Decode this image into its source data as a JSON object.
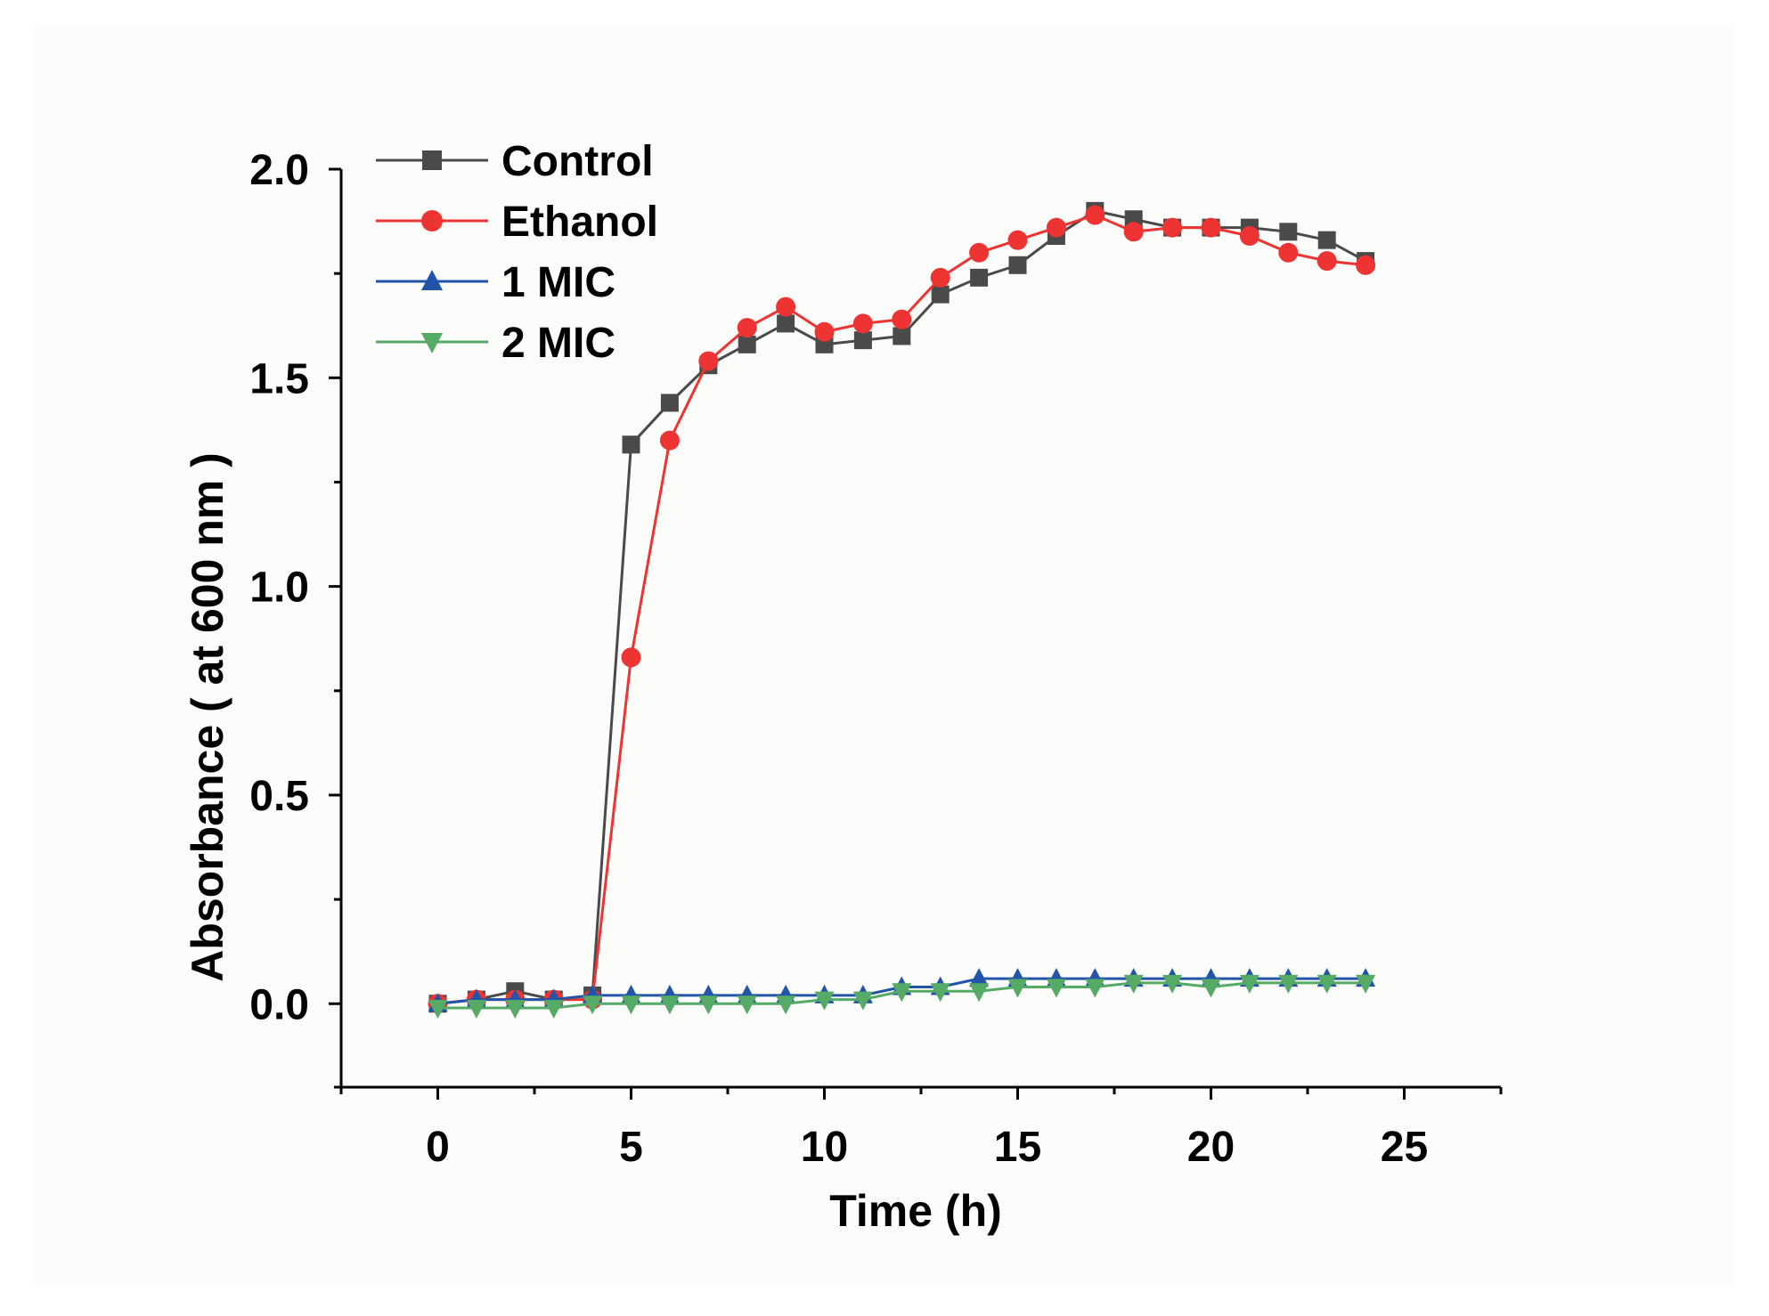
{
  "chart_data": {
    "type": "line",
    "xlabel": "Time (h)",
    "ylabel": "Absorbance ( at 600 nm )",
    "xlim": [
      -2.5,
      27.5
    ],
    "ylim": [
      -0.2,
      2.0
    ],
    "xticks": [
      0,
      5,
      10,
      15,
      20,
      25
    ],
    "yticks": [
      0.0,
      0.5,
      1.0,
      1.5,
      2.0
    ],
    "xtick_labels": [
      "0",
      "5",
      "10",
      "15",
      "20",
      "25"
    ],
    "ytick_labels": [
      "0.0",
      "0.5",
      "1.0",
      "1.5",
      "2.0"
    ],
    "legend_position": "top-left",
    "x": [
      0,
      1,
      2,
      3,
      4,
      5,
      6,
      7,
      8,
      9,
      10,
      11,
      12,
      13,
      14,
      15,
      16,
      17,
      18,
      19,
      20,
      21,
      22,
      23,
      24
    ],
    "series": [
      {
        "name": "Control",
        "color": "#4a4a4a",
        "marker": "square",
        "values": [
          0.0,
          0.01,
          0.03,
          0.01,
          0.02,
          1.34,
          1.44,
          1.53,
          1.58,
          1.63,
          1.58,
          1.59,
          1.6,
          1.7,
          1.74,
          1.77,
          1.84,
          1.9,
          1.88,
          1.86,
          1.86,
          1.86,
          1.85,
          1.83,
          1.78
        ]
      },
      {
        "name": "Ethanol",
        "color": "#ee3333",
        "marker": "circle",
        "values": [
          0.0,
          0.01,
          0.01,
          0.01,
          0.01,
          0.83,
          1.35,
          1.54,
          1.62,
          1.67,
          1.61,
          1.63,
          1.64,
          1.74,
          1.8,
          1.83,
          1.86,
          1.89,
          1.85,
          1.86,
          1.86,
          1.84,
          1.8,
          1.78,
          1.77
        ]
      },
      {
        "name": "1 MIC",
        "color": "#2255aa",
        "marker": "triangle-up",
        "values": [
          0.0,
          0.01,
          0.01,
          0.01,
          0.02,
          0.02,
          0.02,
          0.02,
          0.02,
          0.02,
          0.02,
          0.02,
          0.04,
          0.04,
          0.06,
          0.06,
          0.06,
          0.06,
          0.06,
          0.06,
          0.06,
          0.06,
          0.06,
          0.06,
          0.06
        ]
      },
      {
        "name": "2 MIC",
        "color": "#55aa66",
        "marker": "triangle-down",
        "values": [
          -0.01,
          -0.01,
          -0.01,
          -0.01,
          0.0,
          0.0,
          0.0,
          0.0,
          0.0,
          0.0,
          0.01,
          0.01,
          0.03,
          0.03,
          0.03,
          0.04,
          0.04,
          0.04,
          0.05,
          0.05,
          0.04,
          0.05,
          0.05,
          0.05,
          0.05
        ]
      }
    ]
  }
}
